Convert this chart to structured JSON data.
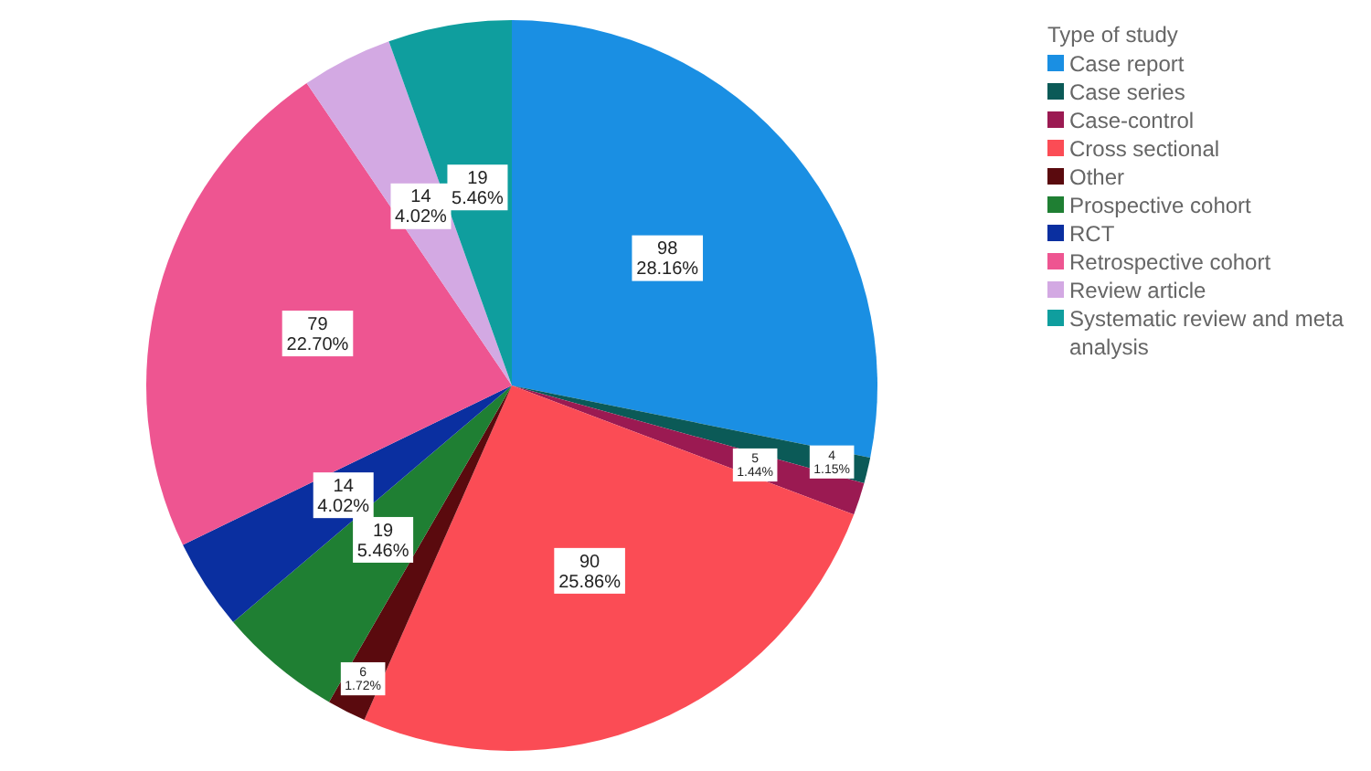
{
  "chart_data": {
    "type": "pie",
    "legend_title": "Type of study",
    "legend": "right",
    "categories": [
      "Case report",
      "Case series",
      "Case-control",
      "Cross sectional",
      "Other",
      "Prospective cohort",
      "RCT",
      "Retrospective cohort",
      "Review article",
      "Systematic review and meta analysis"
    ],
    "values": [
      98,
      4,
      5,
      90,
      6,
      19,
      14,
      79,
      14,
      19
    ],
    "value_labels": [
      "98\n28.16%",
      "4\n1.15%",
      "5\n1.44%",
      "90\n25.86%",
      "6\n1.72%",
      "19\n5.46%",
      "14\n4.02%",
      "79\n22.70%",
      "14\n4.02%",
      "19\n5.46%"
    ],
    "colors": [
      "#1a8fe3",
      "#0b5a57",
      "#9b1a52",
      "#fb4c55",
      "#5a0a0e",
      "#1f7f33",
      "#0a2fa0",
      "#ee5591",
      "#d3a9e3",
      "#0f9e9e"
    ]
  }
}
